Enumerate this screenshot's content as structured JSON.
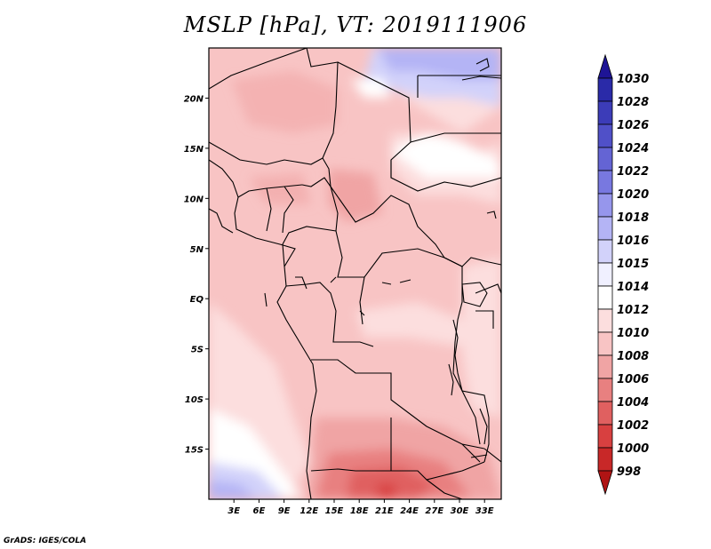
{
  "title": "MSLP [hPa], VT: 2019111906",
  "footer": "GrADS: IGES/COLA",
  "map": {
    "variable": "MSLP",
    "units": "hPa",
    "valid_time": "2019111906",
    "lon_range": [
      0,
      35
    ],
    "lat_range": [
      -20,
      25
    ],
    "lon_ticks": [
      "3E",
      "6E",
      "9E",
      "12E",
      "15E",
      "18E",
      "21E",
      "24E",
      "27E",
      "30E",
      "33E"
    ],
    "lat_ticks": [
      "20N",
      "15N",
      "10N",
      "5N",
      "EQ",
      "5S",
      "10S",
      "15S"
    ]
  },
  "colorbar": {
    "levels": [
      "1030",
      "1028",
      "1026",
      "1024",
      "1022",
      "1020",
      "1018",
      "1016",
      "1015",
      "1014",
      "1012",
      "1010",
      "1008",
      "1006",
      "1004",
      "1002",
      "1000",
      "998"
    ],
    "colors": [
      "#1e1496",
      "#2a2aa8",
      "#3c3cb8",
      "#5050c8",
      "#6464d4",
      "#7878e0",
      "#9696ec",
      "#b4b4f5",
      "#d2d2fa",
      "#f0f0ff",
      "#ffffff",
      "#fcdede",
      "#f8c4c4",
      "#f0a4a4",
      "#e88080",
      "#e06060",
      "#d84040",
      "#c82828",
      "#b01414"
    ]
  }
}
